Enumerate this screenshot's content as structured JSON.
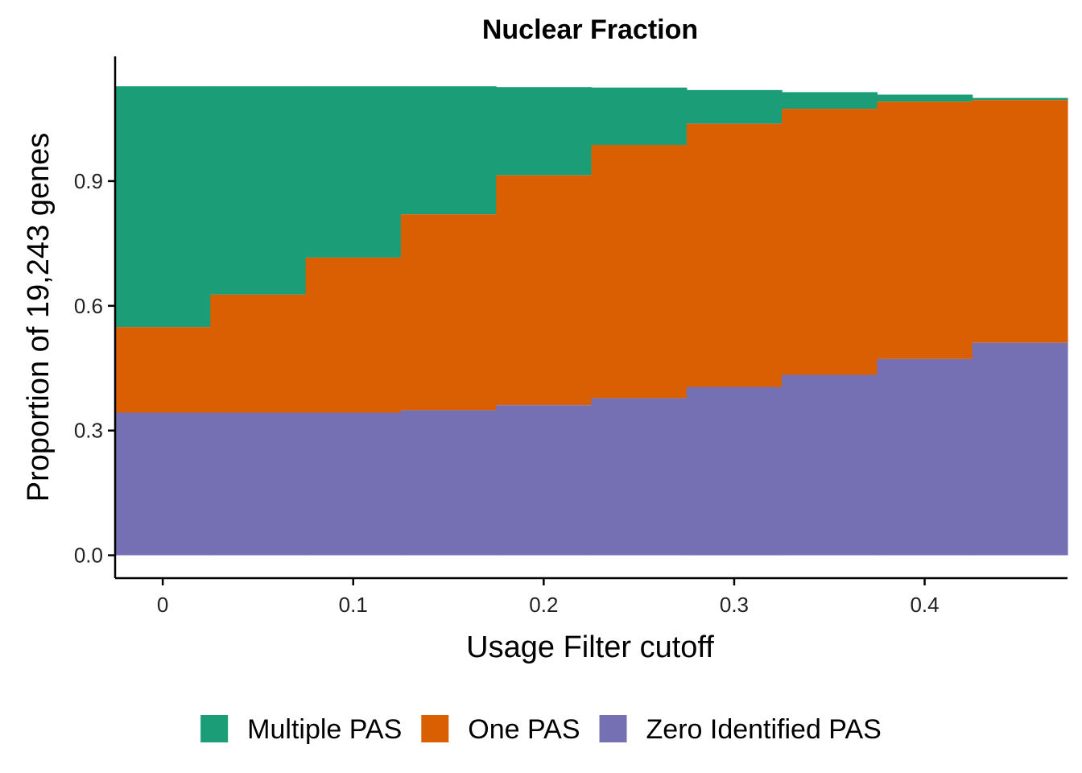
{
  "chart_data": {
    "type": "area",
    "title": "Nuclear Fraction",
    "xlabel": "Usage Filter cutoff",
    "ylabel": "Proportion of 19,243 genes",
    "x": [
      0,
      0.05,
      0.1,
      0.15,
      0.2,
      0.25,
      0.3,
      0.35,
      0.4,
      0.45
    ],
    "xlim": [
      -0.025,
      0.475
    ],
    "ylim": [
      -0.055,
      1.2
    ],
    "x_ticks": [
      0,
      0.1,
      0.2,
      0.3,
      0.4
    ],
    "x_tick_labels": [
      "0",
      "0.1",
      "0.2",
      "0.3",
      "0.4"
    ],
    "y_ticks": [
      0,
      0.3,
      0.6,
      0.9
    ],
    "y_tick_labels": [
      "0.0",
      "0.3",
      "0.6",
      "0.9"
    ],
    "stacking": "stacked",
    "step": "centered",
    "grid": false,
    "legend_position": "bottom",
    "series": [
      {
        "name": "Zero Identified PAS",
        "color": "#7570B3",
        "values": [
          0.343,
          0.343,
          0.343,
          0.349,
          0.361,
          0.378,
          0.405,
          0.434,
          0.472,
          0.511
        ]
      },
      {
        "name": "One PAS",
        "color": "#D95F02",
        "values": [
          0.206,
          0.284,
          0.373,
          0.471,
          0.553,
          0.609,
          0.633,
          0.64,
          0.619,
          0.584
        ]
      },
      {
        "name": "Multiple PAS",
        "color": "#1B9E77",
        "values": [
          0.579,
          0.501,
          0.412,
          0.308,
          0.212,
          0.138,
          0.081,
          0.04,
          0.017,
          0.005
        ]
      }
    ]
  }
}
